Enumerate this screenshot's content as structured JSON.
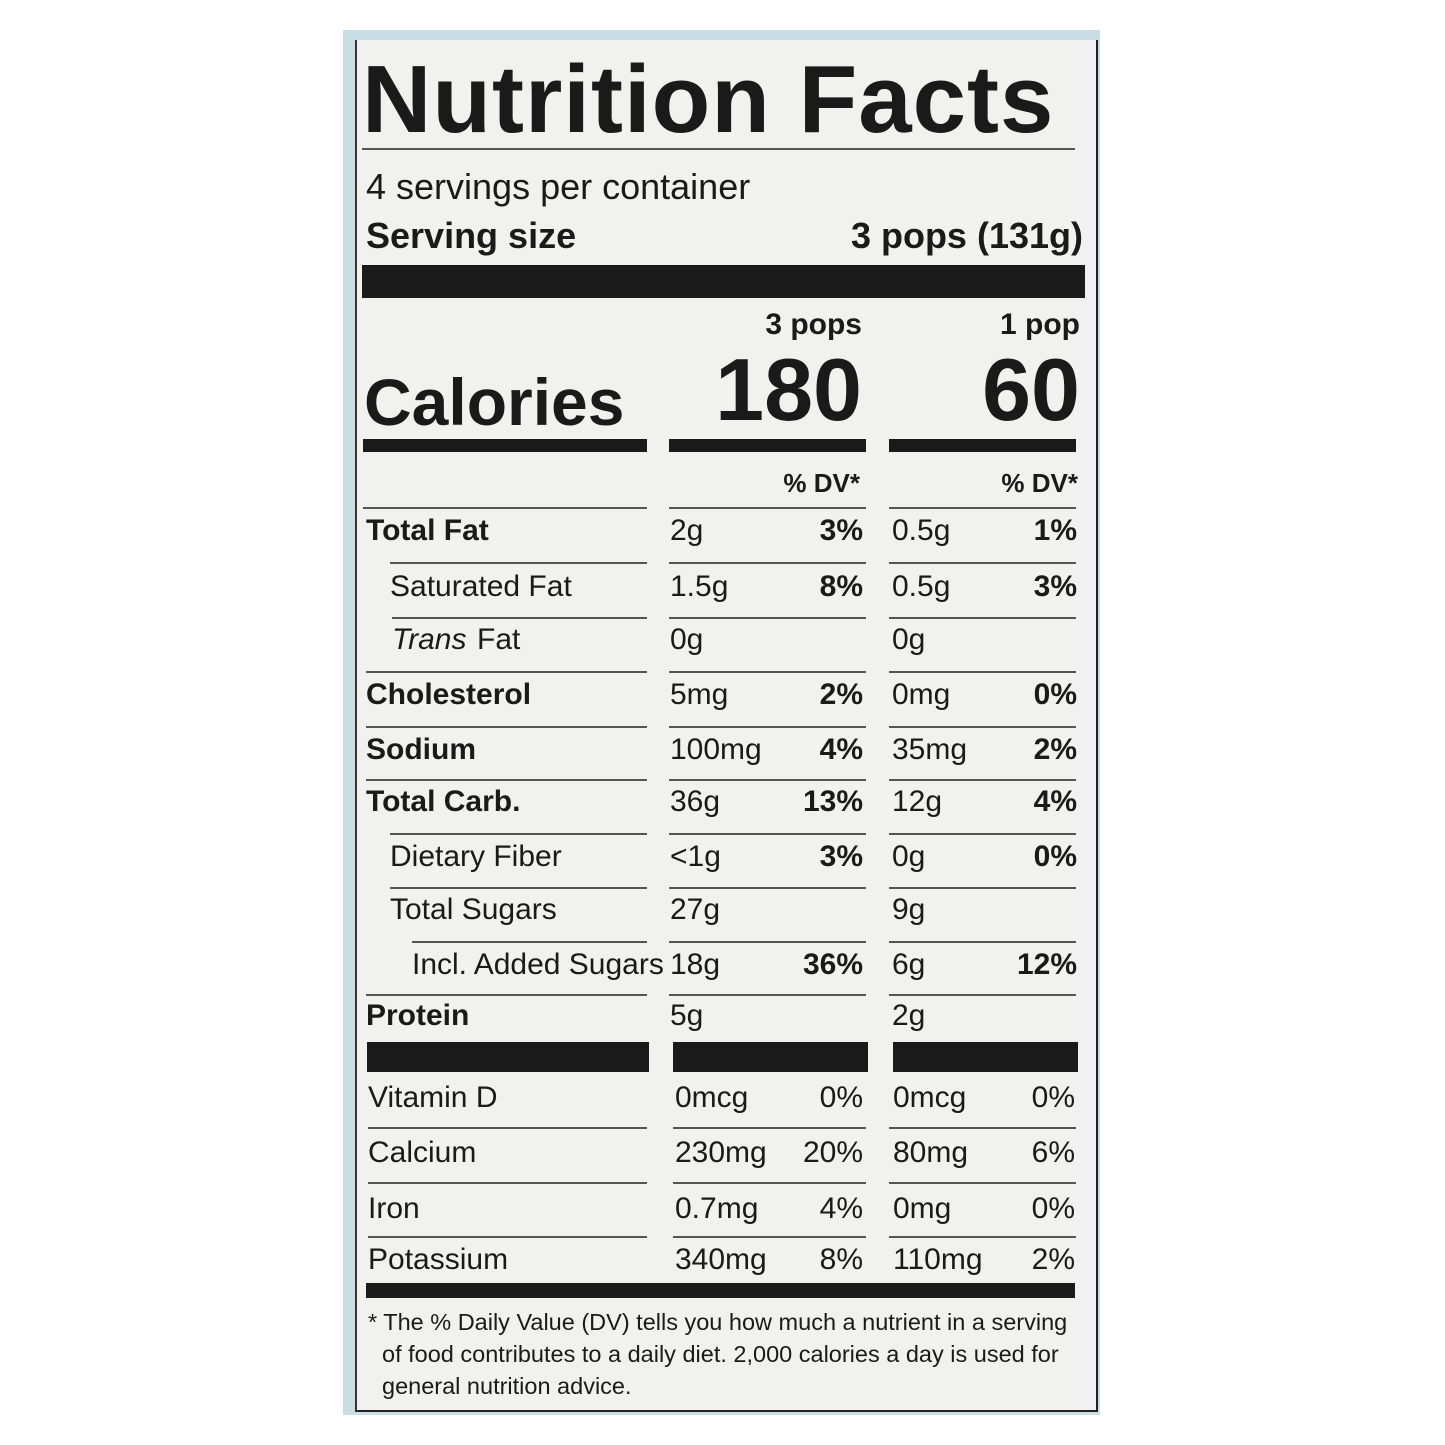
{
  "header": {
    "title": "Nutrition Facts",
    "servings": "4 servings per container",
    "serving_size_label": "Serving size",
    "serving_size": "3 pops (131g)"
  },
  "calories_label": "Calories",
  "columns": [
    {
      "label": "3 pops",
      "calories": 180,
      "dv_header": "% DV*"
    },
    {
      "label": "1 pop",
      "calories": 60,
      "dv_header": "% DV*"
    }
  ],
  "nutrients": [
    {
      "label": "Total Fat",
      "values": [
        [
          "2g",
          "3%"
        ],
        [
          "0.5g",
          "1%"
        ]
      ]
    },
    {
      "label": "Saturated Fat",
      "values": [
        [
          "1.5g",
          "8%"
        ],
        [
          "0.5g",
          "3%"
        ]
      ]
    },
    {
      "label_prefix": "Trans",
      "label": "Fat",
      "values": [
        [
          "0g",
          null
        ],
        [
          "0g",
          null
        ]
      ]
    },
    {
      "label": "Cholesterol",
      "values": [
        [
          "5mg",
          "2%"
        ],
        [
          "0mg",
          "0%"
        ]
      ]
    },
    {
      "label": "Sodium",
      "values": [
        [
          "100mg",
          "4%"
        ],
        [
          "35mg",
          "2%"
        ]
      ]
    },
    {
      "label": "Total Carb.",
      "values": [
        [
          "36g",
          "13%"
        ],
        [
          "12g",
          "4%"
        ]
      ]
    },
    {
      "label": "Dietary Fiber",
      "values": [
        [
          "<1g",
          "3%"
        ],
        [
          "0g",
          "0%"
        ]
      ]
    },
    {
      "label": "Total Sugars",
      "values": [
        [
          "27g",
          null
        ],
        [
          "9g",
          null
        ]
      ]
    },
    {
      "label": "Incl. Added Sugars",
      "values": [
        [
          "18g",
          "36%"
        ],
        [
          "6g",
          "12%"
        ]
      ]
    },
    {
      "label": "Protein",
      "values": [
        [
          "5g",
          null
        ],
        [
          "2g",
          null
        ]
      ]
    }
  ],
  "vitamins": [
    {
      "label": "Vitamin D",
      "values": [
        [
          "0mcg",
          "0%"
        ],
        [
          "0mcg",
          "0%"
        ]
      ]
    },
    {
      "label": "Calcium",
      "values": [
        [
          "230mg",
          "20%"
        ],
        [
          "80mg",
          "6%"
        ]
      ]
    },
    {
      "label": "Iron",
      "values": [
        [
          "0.7mg",
          "4%"
        ],
        [
          "0mg",
          "0%"
        ]
      ]
    },
    {
      "label": "Potassium",
      "values": [
        [
          "340mg",
          "8%"
        ],
        [
          "110mg",
          "2%"
        ]
      ]
    }
  ],
  "footnote": "* The % Daily Value (DV) tells you how much a nutrient in a serving of food contributes to a daily diet. 2,000 calories a day is used for general nutrition advice."
}
